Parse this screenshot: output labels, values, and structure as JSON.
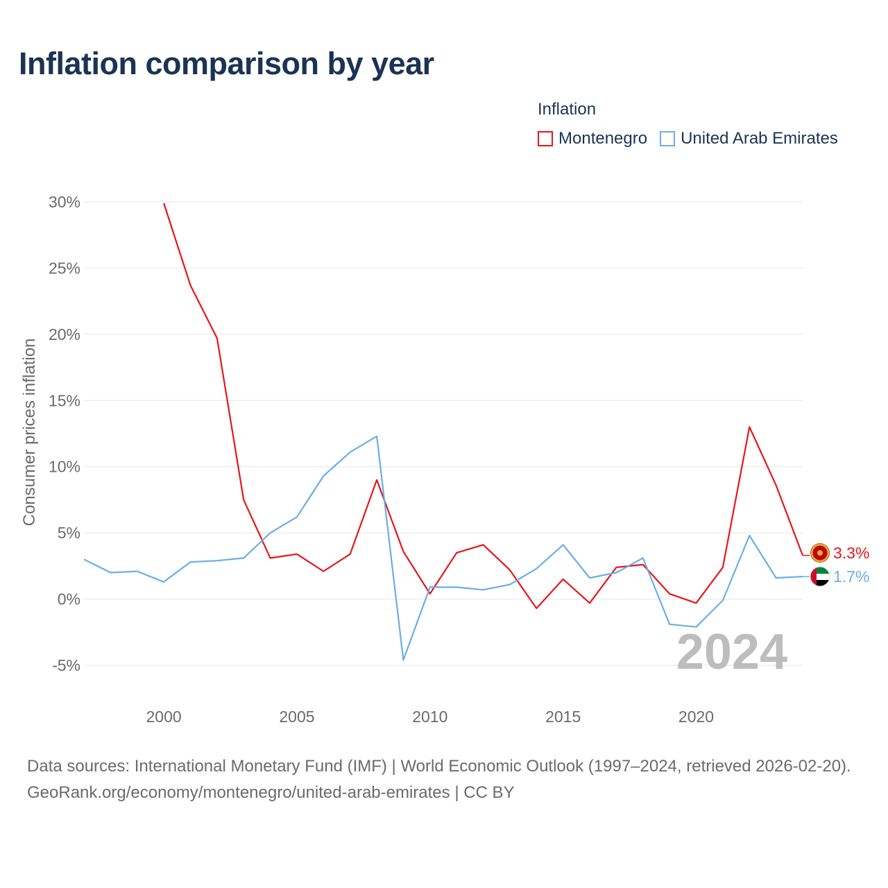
{
  "title": "Inflation comparison by year",
  "legend": {
    "title": "Inflation",
    "items": [
      {
        "label": "Montenegro",
        "color": "#e8141a"
      },
      {
        "label": "United Arab Emirates",
        "color": "#6aaee6"
      }
    ]
  },
  "watermark_year": "2024",
  "footer": {
    "sources": "Data sources: International Monetary Fund (IMF) | World Economic Outlook (1997–2024, retrieved 2026-02-20).",
    "link": "GeoRank.org/economy/montenegro/united-arab-emirates | CC BY"
  },
  "chart_data": {
    "type": "line",
    "title": "Inflation comparison by year",
    "xlabel": "",
    "ylabel": "Consumer prices inflation",
    "xlim": [
      1997,
      2024
    ],
    "ylim": [
      -5,
      30
    ],
    "yticks": [
      -5,
      0,
      5,
      10,
      15,
      20,
      25,
      30
    ],
    "ytick_labels": [
      "-5%",
      "0%",
      "5%",
      "10%",
      "15%",
      "20%",
      "25%",
      "30%"
    ],
    "xticks": [
      2000,
      2005,
      2010,
      2015,
      2020
    ],
    "xtick_labels": [
      "2000",
      "2005",
      "2010",
      "2015",
      "2020"
    ],
    "grid": true,
    "series": [
      {
        "name": "Montenegro",
        "color": "#e8141a",
        "end_label": "3.3%",
        "x": [
          2000,
          2001,
          2002,
          2003,
          2004,
          2005,
          2006,
          2007,
          2008,
          2009,
          2010,
          2011,
          2012,
          2013,
          2014,
          2015,
          2016,
          2017,
          2018,
          2019,
          2020,
          2021,
          2022,
          2023,
          2024
        ],
        "values": [
          29.9,
          23.7,
          19.7,
          7.5,
          3.1,
          3.4,
          2.1,
          3.4,
          9.0,
          3.6,
          0.4,
          3.5,
          4.1,
          2.2,
          -0.7,
          1.5,
          -0.3,
          2.4,
          2.6,
          0.4,
          -0.3,
          2.4,
          13.0,
          8.6,
          3.3
        ]
      },
      {
        "name": "United Arab Emirates",
        "color": "#6aaee6",
        "end_label": "1.7%",
        "x": [
          1997,
          1998,
          1999,
          2000,
          2001,
          2002,
          2003,
          2004,
          2005,
          2006,
          2007,
          2008,
          2009,
          2010,
          2011,
          2012,
          2013,
          2014,
          2015,
          2016,
          2017,
          2018,
          2019,
          2020,
          2021,
          2022,
          2023,
          2024
        ],
        "values": [
          3.0,
          2.0,
          2.1,
          1.3,
          2.8,
          2.9,
          3.1,
          5.0,
          6.2,
          9.3,
          11.1,
          12.3,
          -4.6,
          0.9,
          0.9,
          0.7,
          1.1,
          2.3,
          4.1,
          1.6,
          2.0,
          3.1,
          -1.9,
          -2.1,
          -0.1,
          4.8,
          1.6,
          1.7
        ]
      }
    ]
  }
}
